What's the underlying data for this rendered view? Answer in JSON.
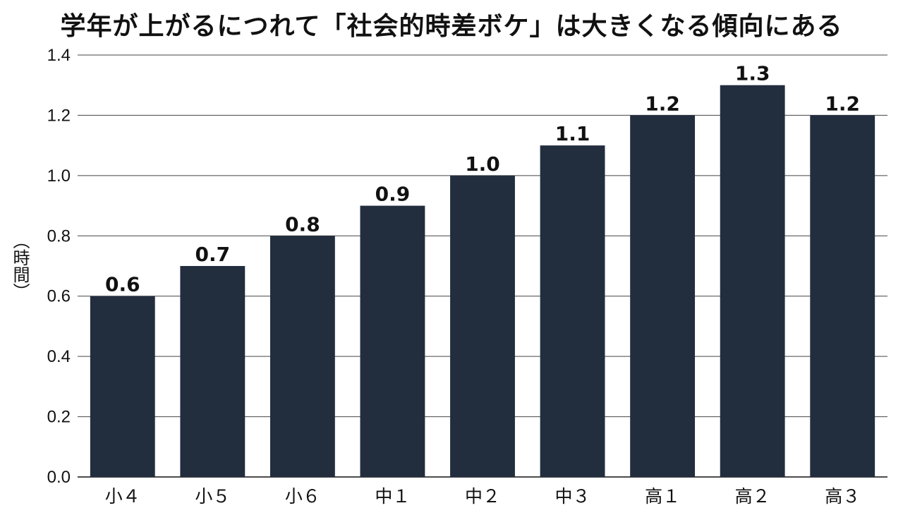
{
  "chart_data": {
    "type": "bar",
    "title": "学年が上がるにつれて「社会的時差ボケ」は大きくなる傾向にある",
    "ylabel": "（時間）",
    "xlabel": "",
    "categories": [
      "小４",
      "小５",
      "小６",
      "中１",
      "中２",
      "中３",
      "高１",
      "高２",
      "高３"
    ],
    "values": [
      0.6,
      0.7,
      0.8,
      0.9,
      1.0,
      1.1,
      1.2,
      1.3,
      1.2
    ],
    "data_labels": [
      "0.6",
      "0.7",
      "0.8",
      "0.9",
      "1.0",
      "1.1",
      "1.2",
      "1.3",
      "1.2"
    ],
    "ylim": [
      0,
      1.4
    ],
    "yticks": [
      "0.0",
      "0.2",
      "0.4",
      "0.6",
      "0.8",
      "1.0",
      "1.2",
      "1.4"
    ],
    "grid": "horizontal",
    "colors": {
      "bar": "#222d3e",
      "grid": "#444444",
      "text": "#111111"
    }
  }
}
